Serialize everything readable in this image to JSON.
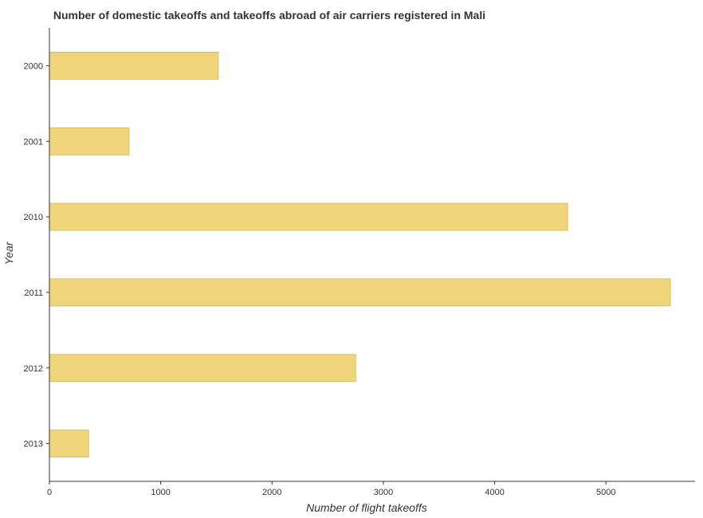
{
  "chart_data": {
    "type": "bar",
    "orientation": "horizontal",
    "title": "Number of domestic takeoffs and takeoffs abroad of air carriers registered in Mali",
    "xlabel": "Number of flight takeoffs",
    "ylabel": "Year",
    "categories": [
      "2000",
      "2001",
      "2010",
      "2011",
      "2012",
      "2013"
    ],
    "values": [
      1518,
      716,
      4656,
      5579,
      2752,
      353
    ],
    "xlim": [
      0,
      5800
    ],
    "xticks": [
      0,
      1000,
      2000,
      3000,
      4000,
      5000
    ],
    "xtick_labels": [
      "0",
      "1000",
      "2000",
      "3000",
      "4000",
      "5000"
    ],
    "grid": false,
    "bar_color": "#f0d47a"
  }
}
